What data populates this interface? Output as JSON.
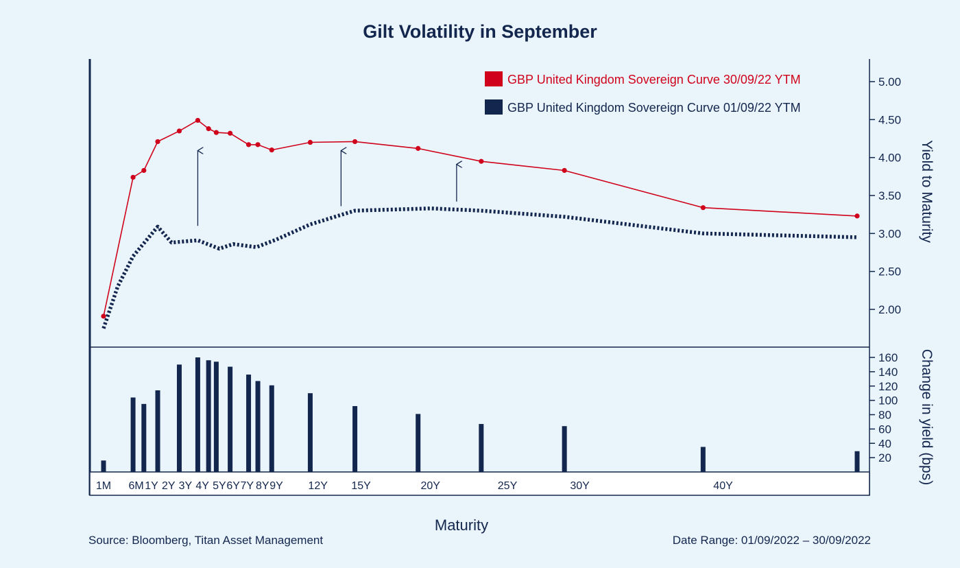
{
  "chart_data": {
    "type": "line",
    "title": "Gilt Volatility in September",
    "xlabel": "Maturity",
    "ylabel": "Yield to Maturity",
    "ylabel_bottom": "Change in yield (bps)",
    "legend_position": "top-right",
    "colors": {
      "series_red": "#d0021b",
      "series_navy": "#13264d",
      "background": "#eaf4fb"
    },
    "x_max": 50,
    "x_tick_labels": [
      {
        "label": "1M",
        "x": 0.083
      },
      {
        "label": "6M",
        "x": 2.2
      },
      {
        "label": "1Y",
        "x": 3.2
      },
      {
        "label": "2Y",
        "x": 4.3
      },
      {
        "label": "3Y",
        "x": 5.4
      },
      {
        "label": "4Y",
        "x": 6.5
      },
      {
        "label": "5Y",
        "x": 7.6
      },
      {
        "label": "6Y",
        "x": 8.5
      },
      {
        "label": "7Y",
        "x": 9.4
      },
      {
        "label": "8Y",
        "x": 10.4
      },
      {
        "label": "9Y",
        "x": 11.3
      },
      {
        "label": "12Y",
        "x": 14.0
      },
      {
        "label": "15Y",
        "x": 16.8
      },
      {
        "label": "20Y",
        "x": 21.3
      },
      {
        "label": "25Y",
        "x": 26.3
      },
      {
        "label": "30Y",
        "x": 31.0
      },
      {
        "label": "40Y",
        "x": 40.3
      }
    ],
    "yield_axis": {
      "ylim": [
        1.5,
        5.3
      ],
      "ticks": [
        "5.00",
        "4.50",
        "4.00",
        "3.50",
        "3.00",
        "2.50",
        "2.00"
      ]
    },
    "change_axis": {
      "ylim": [
        0,
        170
      ],
      "ticks": [
        "160",
        "140",
        "120",
        "100",
        "80",
        "60",
        "40",
        "20"
      ]
    },
    "series": [
      {
        "name": "GBP United Kingdom Sovereign Curve 30/09/22 YTM",
        "style": "solid",
        "color": "#d0021b",
        "x": [
          0.083,
          2.0,
          2.7,
          3.6,
          5.0,
          6.2,
          6.9,
          7.4,
          8.3,
          9.5,
          10.1,
          11.0,
          13.5,
          16.4,
          20.5,
          24.6,
          30.0,
          39.0,
          49.0
        ],
        "y": [
          1.91,
          3.74,
          3.83,
          4.21,
          4.35,
          4.49,
          4.38,
          4.33,
          4.32,
          4.17,
          4.17,
          4.1,
          4.2,
          4.21,
          4.12,
          3.95,
          3.83,
          3.34,
          3.23
        ]
      },
      {
        "name": "GBP United Kingdom Sovereign Curve 01/09/22 YTM",
        "style": "dotted",
        "color": "#13264d",
        "x": [
          0.083,
          1.0,
          2.0,
          3.6,
          4.5,
          6.2,
          7.6,
          8.5,
          10.0,
          11.3,
          13.5,
          16.4,
          21.3,
          24.6,
          30.0,
          39.0,
          49.0
        ],
        "y": [
          1.75,
          2.3,
          2.7,
          3.09,
          2.88,
          2.91,
          2.8,
          2.86,
          2.82,
          2.92,
          3.12,
          3.3,
          3.33,
          3.3,
          3.22,
          3.0,
          2.95
        ]
      }
    ],
    "change_bars": {
      "x": [
        0.083,
        2.0,
        2.7,
        3.6,
        5.0,
        6.2,
        6.9,
        7.4,
        8.3,
        9.5,
        10.1,
        11.0,
        13.5,
        16.4,
        20.5,
        24.6,
        30.0,
        39.0,
        49.0
      ],
      "values": [
        16,
        104,
        95,
        114,
        150,
        160,
        156,
        154,
        147,
        136,
        127,
        121,
        110,
        92,
        81,
        67,
        64,
        35,
        29
      ]
    },
    "arrows": [
      {
        "x": 6.2,
        "y_from": 3.1,
        "y_to": 4.1
      },
      {
        "x": 15.5,
        "y_from": 3.36,
        "y_to": 4.1
      },
      {
        "x": 23.0,
        "y_from": 3.42,
        "y_to": 3.92
      }
    ]
  },
  "footer": {
    "source": "Source: Bloomberg, Titan Asset Management",
    "date_range": "Date Range: 01/09/2022 – 30/09/2022"
  }
}
